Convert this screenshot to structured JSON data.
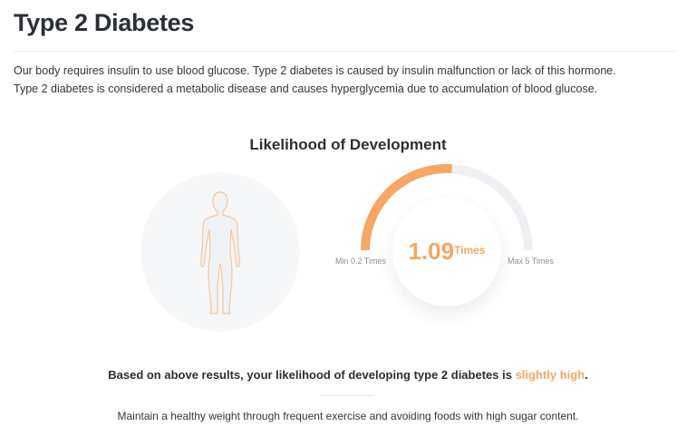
{
  "header": {
    "title": "Type 2 Diabetes"
  },
  "description": "Our body requires insulin to use blood glucose. Type 2 diabetes is caused by insulin malfunction or lack of this hormone. Type 2 diabetes is considered a metabolic disease and causes hyperglycemia due to accumulation of blood glucose.",
  "likelihood": {
    "title": "Likelihood of Development",
    "value": "1.09",
    "unit": "Times",
    "min_label": "Min 0.2 Times",
    "max_label": "Max 5 Times",
    "gauge_fill_fraction": 0.52,
    "accent_color": "#f5a763",
    "track_color": "#eef0f3"
  },
  "result": {
    "prefix": "Based on above results, your likelihood of developing type 2 diabetes is ",
    "level": "slightly high",
    "suffix": "."
  },
  "advice": "Maintain a healthy weight through frequent exercise and avoiding foods with high sugar content."
}
